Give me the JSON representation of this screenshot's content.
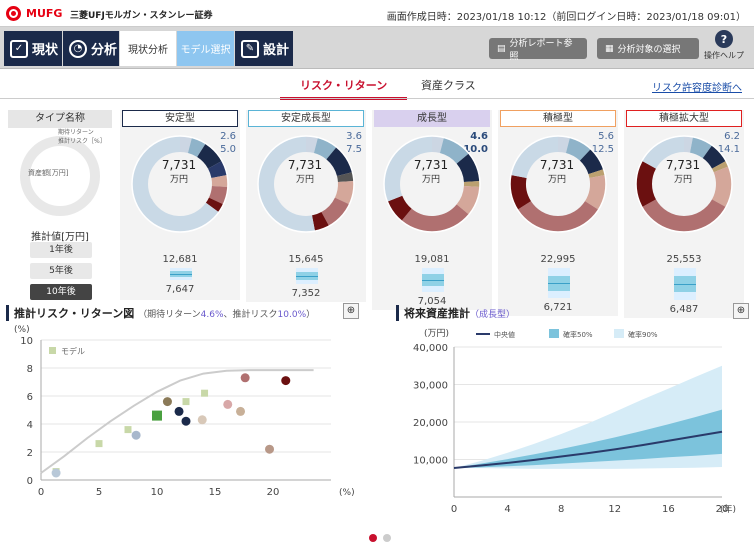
{
  "header": {
    "logo": "MUFG",
    "company": "三菱UFJモルガン・スタンレー証券",
    "dates": "画面作成日時：2023/01/18 10:12（前回ログイン日時：2023/01/18 09:01）"
  },
  "nav": {
    "genjo": "現状",
    "bunseki": "分析",
    "genjo_bunseki": "現状分析",
    "model_sentaku": "モデル選択",
    "sekkei": "設計",
    "report": "分析レポート参照",
    "target": "分析対象の選択",
    "help": "操作ヘルプ",
    "help_glyph": "?"
  },
  "tabs": {
    "risk": "リスク・リターン",
    "asset": "資産クラス",
    "link": "リスク許容度診断へ"
  },
  "left": {
    "type_name": "タイプ名称",
    "legend_ret": "期待リターン",
    "legend_risk": "推計リスク［%］",
    "legend_asset": "資産額[万円]",
    "suikei": "推計値[万円]",
    "years": [
      "1年後",
      "5年後",
      "10年後"
    ],
    "active_year": "10年後"
  },
  "cards": [
    {
      "name": "安定型",
      "border": "#1b2a4a",
      "bg": "#fff",
      "ret": "2.6",
      "risk": "5.0",
      "bold": false,
      "center": "7,731",
      "unit": "万円",
      "top": "12,681",
      "bot": "7,647",
      "segs": [
        [
          0.04,
          "#ccd6e3"
        ],
        [
          0.05,
          "#8fb3c9"
        ],
        [
          0.08,
          "#1b2a4a"
        ],
        [
          0.05,
          "#2a3a6a"
        ],
        [
          0.04,
          "#d4a79a"
        ],
        [
          0.06,
          "#b07070"
        ],
        [
          0.03,
          "#6b1010"
        ],
        [
          0.65,
          "#c9d9e6"
        ]
      ],
      "bar": {
        "top": 0.32,
        "h": 0.1
      }
    },
    {
      "name": "安定成長型",
      "border": "#5ab4d6",
      "bg": "#fff",
      "ret": "3.6",
      "risk": "7.5",
      "bold": false,
      "center": "7,731",
      "unit": "万円",
      "top": "15,645",
      "bot": "7,352",
      "segs": [
        [
          0.04,
          "#ccd6e3"
        ],
        [
          0.07,
          "#8fb3c9"
        ],
        [
          0.1,
          "#1b2a4a"
        ],
        [
          0.03,
          "#555"
        ],
        [
          0.08,
          "#d4a79a"
        ],
        [
          0.1,
          "#b07070"
        ],
        [
          0.05,
          "#6b1010"
        ],
        [
          0.53,
          "#c9d9e6"
        ]
      ],
      "bar": {
        "top": 0.35,
        "h": 0.2
      }
    },
    {
      "name": "成長型",
      "border": "#d9d0ee",
      "bg": "#d9d0ee",
      "ret": "4.6",
      "risk": "10.0",
      "bold": true,
      "center": "7,731",
      "unit": "万円",
      "top": "19,081",
      "bot": "7,054",
      "segs": [
        [
          0.04,
          "#ccd6e3"
        ],
        [
          0.1,
          "#8fb3c9"
        ],
        [
          0.1,
          "#1b2a4a"
        ],
        [
          0.02,
          "#bba070"
        ],
        [
          0.1,
          "#d4a79a"
        ],
        [
          0.25,
          "#b07070"
        ],
        [
          0.08,
          "#6b1010"
        ],
        [
          0.31,
          "#c9d9e6"
        ]
      ],
      "bar": {
        "top": 0.25,
        "h": 0.4
      }
    },
    {
      "name": "積極型",
      "border": "#f0a060",
      "bg": "#fff",
      "ret": "5.6",
      "risk": "12.5",
      "bold": false,
      "center": "7,731",
      "unit": "万円",
      "top": "22,995",
      "bot": "6,721",
      "segs": [
        [
          0.04,
          "#ccd6e3"
        ],
        [
          0.08,
          "#8fb3c9"
        ],
        [
          0.08,
          "#1b2a4a"
        ],
        [
          0.02,
          "#bba070"
        ],
        [
          0.12,
          "#d4a79a"
        ],
        [
          0.32,
          "#b07070"
        ],
        [
          0.12,
          "#6b1010"
        ],
        [
          0.22,
          "#c9d9e6"
        ]
      ],
      "bar": {
        "top": 0.2,
        "h": 0.55
      }
    },
    {
      "name": "積極拡大型",
      "border": "#e02020",
      "bg": "#fff",
      "ret": "6.2",
      "risk": "14.1",
      "bold": false,
      "center": "7,731",
      "unit": "万円",
      "top": "25,553",
      "bot": "6,487",
      "segs": [
        [
          0.03,
          "#ccd6e3"
        ],
        [
          0.07,
          "#8fb3c9"
        ],
        [
          0.07,
          "#1b2a4a"
        ],
        [
          0.02,
          "#bba070"
        ],
        [
          0.14,
          "#d4a79a"
        ],
        [
          0.34,
          "#b07070"
        ],
        [
          0.16,
          "#6b1010"
        ],
        [
          0.17,
          "#c9d9e6"
        ]
      ],
      "bar": {
        "top": 0.15,
        "h": 0.6
      }
    }
  ],
  "scatter": {
    "title": "推計リスク・リターン図",
    "sub1": "（期待リターン",
    "ret": "4.6%",
    "sub2": "、推計リスク",
    "risk": "10.0%",
    "sub3": "）",
    "unit": "(%)",
    "xunit": "(%)",
    "legend": "モデル"
  },
  "future": {
    "title": "将来資産推計",
    "sub": "（成長型）",
    "unit": "(万円)",
    "xunit": "(年)",
    "legend": [
      "中央値",
      "確率50%",
      "確率90%"
    ]
  },
  "chart_data": [
    {
      "type": "scatter",
      "xlim": [
        0,
        25
      ],
      "ylim": [
        0,
        10
      ],
      "xticks": [
        0,
        5,
        10,
        15,
        20
      ],
      "yticks": [
        0,
        2,
        4,
        6,
        8,
        10
      ],
      "frontier": [
        [
          0,
          0.5
        ],
        [
          2,
          1.7
        ],
        [
          4,
          3
        ],
        [
          6,
          4.2
        ],
        [
          8,
          5.3
        ],
        [
          10,
          6.3
        ],
        [
          12,
          7.1
        ],
        [
          14,
          7.6
        ],
        [
          16,
          7.8
        ],
        [
          18,
          7.85
        ],
        [
          23.5,
          7.85
        ]
      ],
      "models": [
        [
          1.3,
          0.6
        ],
        [
          5,
          2.6
        ],
        [
          7.5,
          3.6
        ],
        [
          10,
          4.6
        ],
        [
          12.5,
          5.6
        ],
        [
          14.1,
          6.2
        ]
      ],
      "points": [
        [
          1.3,
          0.5,
          "#b8c8d8"
        ],
        [
          8.2,
          3.2,
          "#a8b8cc"
        ],
        [
          10.9,
          5.6,
          "#8b7a58"
        ],
        [
          11.9,
          4.9,
          "#1b2a4a"
        ],
        [
          12.5,
          4.2,
          "#1b2a4a"
        ],
        [
          13.9,
          4.3,
          "#d8c8b8"
        ],
        [
          16.1,
          5.4,
          "#d8a8a8"
        ],
        [
          17.2,
          4.9,
          "#c8b098"
        ],
        [
          17.6,
          7.3,
          "#b07070"
        ],
        [
          19.7,
          2.2,
          "#b89888"
        ],
        [
          21.1,
          7.1,
          "#6b1010"
        ]
      ]
    },
    {
      "type": "area",
      "xlim": [
        0,
        20
      ],
      "ylim": [
        0,
        40000
      ],
      "xticks": [
        0,
        4,
        8,
        12,
        16,
        20
      ],
      "yticks": [
        10000,
        20000,
        30000,
        40000
      ],
      "x": [
        0,
        2,
        4,
        6,
        8,
        10,
        12,
        14,
        16,
        18,
        20
      ],
      "median": [
        7731,
        8400,
        9100,
        9900,
        10800,
        11700,
        12700,
        13800,
        15000,
        16200,
        17400
      ],
      "p50_lo": [
        7731,
        7900,
        8200,
        8500,
        8900,
        9300,
        9700,
        10100,
        10600,
        11000,
        11500
      ],
      "p50_hi": [
        7731,
        8900,
        10100,
        11400,
        12800,
        14300,
        15900,
        17600,
        19400,
        21300,
        23300
      ],
      "p90_lo": [
        7731,
        7700,
        7600,
        7500,
        7500,
        7500,
        7500,
        7600,
        7700,
        7800,
        8000
      ],
      "p90_hi": [
        7731,
        9600,
        11800,
        14200,
        16800,
        19600,
        22700,
        25900,
        28900,
        32000,
        35000
      ]
    }
  ]
}
